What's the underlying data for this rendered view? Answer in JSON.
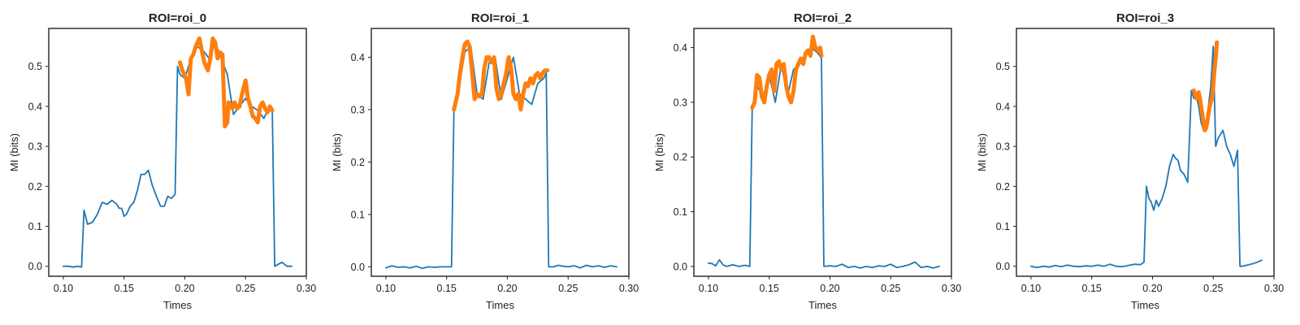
{
  "colors": {
    "baseline": "#1f77b4",
    "highlight": "#ff7f0e",
    "frame": "#222222"
  },
  "chart_data": [
    {
      "type": "line",
      "title": "ROI=roi_0",
      "xlabel": "Times",
      "ylabel": "MI (bits)",
      "xlim": [
        0.088,
        0.3
      ],
      "ylim": [
        -0.025,
        0.595
      ],
      "xticks": [
        "0.10",
        "0.15",
        "0.20",
        "0.25",
        "0.30"
      ],
      "xtick_values": [
        0.1,
        0.15,
        0.2,
        0.25,
        0.3
      ],
      "yticks": [
        "0.0",
        "0.1",
        "0.2",
        "0.3",
        "0.4",
        "0.5"
      ],
      "ytick_values": [
        0.0,
        0.1,
        0.2,
        0.3,
        0.4,
        0.5
      ],
      "series": [
        {
          "role": "baseline",
          "x": [
            0.1,
            0.104,
            0.108,
            0.112,
            0.115,
            0.117,
            0.12,
            0.124,
            0.128,
            0.132,
            0.136,
            0.14,
            0.144,
            0.146,
            0.148,
            0.15,
            0.152,
            0.155,
            0.158,
            0.161,
            0.164,
            0.167,
            0.17,
            0.173,
            0.176,
            0.18,
            0.183,
            0.186,
            0.189,
            0.192,
            0.194,
            0.196,
            0.2,
            0.205,
            0.21,
            0.215,
            0.22,
            0.225,
            0.23,
            0.235,
            0.24,
            0.245,
            0.25,
            0.255,
            0.26,
            0.265,
            0.27,
            0.272,
            0.274,
            0.277,
            0.28,
            0.284,
            0.288
          ],
          "y": [
            0.0,
            0.0,
            -0.002,
            0.0,
            -0.002,
            0.14,
            0.105,
            0.11,
            0.13,
            0.16,
            0.155,
            0.165,
            0.155,
            0.145,
            0.145,
            0.125,
            0.13,
            0.15,
            0.16,
            0.19,
            0.23,
            0.23,
            0.24,
            0.205,
            0.18,
            0.15,
            0.15,
            0.175,
            0.17,
            0.18,
            0.5,
            0.48,
            0.47,
            0.52,
            0.55,
            0.54,
            0.52,
            0.56,
            0.52,
            0.48,
            0.38,
            0.4,
            0.42,
            0.4,
            0.39,
            0.37,
            0.4,
            0.39,
            0.0,
            0.005,
            0.01,
            0.0,
            0.0
          ]
        },
        {
          "role": "highlight",
          "x": [
            0.196,
            0.198,
            0.201,
            0.203,
            0.205,
            0.207,
            0.209,
            0.212,
            0.214,
            0.216,
            0.219,
            0.221,
            0.223,
            0.225,
            0.227,
            0.229,
            0.231,
            0.233,
            0.235,
            0.236,
            0.237,
            0.238,
            0.239,
            0.241,
            0.243,
            0.245,
            0.247,
            0.25,
            0.252,
            0.254,
            0.256,
            0.258,
            0.26,
            0.262,
            0.264,
            0.266,
            0.268,
            0.27,
            0.272
          ],
          "y": [
            0.51,
            0.49,
            0.47,
            0.43,
            0.52,
            0.53,
            0.55,
            0.57,
            0.54,
            0.51,
            0.49,
            0.52,
            0.57,
            0.56,
            0.52,
            0.535,
            0.53,
            0.35,
            0.36,
            0.41,
            0.405,
            0.4,
            0.395,
            0.41,
            0.395,
            0.4,
            0.43,
            0.465,
            0.42,
            0.4,
            0.375,
            0.37,
            0.36,
            0.4,
            0.41,
            0.395,
            0.385,
            0.4,
            0.39
          ]
        }
      ]
    },
    {
      "type": "line",
      "title": "ROI=roi_1",
      "xlabel": "Times",
      "ylabel": "MI (bits)",
      "xlim": [
        0.088,
        0.3
      ],
      "ylim": [
        -0.018,
        0.455
      ],
      "xticks": [
        "0.10",
        "0.15",
        "0.20",
        "0.25",
        "0.30"
      ],
      "xtick_values": [
        0.1,
        0.15,
        0.2,
        0.25,
        0.3
      ],
      "yticks": [
        "0.0",
        "0.1",
        "0.2",
        "0.3",
        "0.4"
      ],
      "ytick_values": [
        0.0,
        0.1,
        0.2,
        0.3,
        0.4
      ],
      "series": [
        {
          "role": "baseline",
          "x": [
            0.1,
            0.105,
            0.11,
            0.115,
            0.12,
            0.125,
            0.13,
            0.135,
            0.14,
            0.145,
            0.15,
            0.154,
            0.156,
            0.16,
            0.165,
            0.17,
            0.175,
            0.18,
            0.185,
            0.19,
            0.195,
            0.2,
            0.205,
            0.21,
            0.215,
            0.22,
            0.225,
            0.23,
            0.232,
            0.234,
            0.238,
            0.242,
            0.246,
            0.25,
            0.255,
            0.26,
            0.265,
            0.27,
            0.275,
            0.28,
            0.285,
            0.29
          ],
          "y": [
            -0.002,
            0.002,
            -0.001,
            0.0,
            -0.002,
            0.001,
            -0.003,
            0.0,
            -0.001,
            0.0,
            0.0,
            0.0,
            0.3,
            0.34,
            0.41,
            0.42,
            0.33,
            0.32,
            0.39,
            0.4,
            0.32,
            0.36,
            0.4,
            0.33,
            0.32,
            0.31,
            0.35,
            0.36,
            0.37,
            0.0,
            0.0,
            0.003,
            0.001,
            0.0,
            0.002,
            -0.002,
            0.003,
            0.0,
            0.002,
            -0.001,
            0.002,
            0.0
          ]
        },
        {
          "role": "highlight",
          "x": [
            0.156,
            0.159,
            0.161,
            0.163,
            0.165,
            0.167,
            0.169,
            0.171,
            0.173,
            0.175,
            0.177,
            0.179,
            0.181,
            0.183,
            0.185,
            0.187,
            0.189,
            0.191,
            0.193,
            0.195,
            0.197,
            0.199,
            0.201,
            0.203,
            0.205,
            0.207,
            0.209,
            0.211,
            0.213,
            0.215,
            0.217,
            0.219,
            0.221,
            0.223,
            0.225,
            0.227,
            0.229,
            0.231,
            0.233
          ],
          "y": [
            0.3,
            0.33,
            0.37,
            0.4,
            0.425,
            0.43,
            0.42,
            0.37,
            0.32,
            0.33,
            0.325,
            0.33,
            0.38,
            0.4,
            0.4,
            0.39,
            0.4,
            0.34,
            0.32,
            0.33,
            0.35,
            0.37,
            0.4,
            0.38,
            0.33,
            0.32,
            0.33,
            0.3,
            0.33,
            0.35,
            0.345,
            0.36,
            0.35,
            0.365,
            0.37,
            0.36,
            0.37,
            0.375,
            0.375
          ]
        }
      ]
    },
    {
      "type": "line",
      "title": "ROI=roi_2",
      "xlabel": "Times",
      "ylabel": "MI (bits)",
      "xlim": [
        0.088,
        0.3
      ],
      "ylim": [
        -0.018,
        0.435
      ],
      "xticks": [
        "0.10",
        "0.15",
        "0.20",
        "0.25",
        "0.30"
      ],
      "xtick_values": [
        0.1,
        0.15,
        0.2,
        0.25,
        0.3
      ],
      "yticks": [
        "0.0",
        "0.1",
        "0.2",
        "0.3",
        "0.4"
      ],
      "ytick_values": [
        0.0,
        0.1,
        0.2,
        0.3,
        0.4
      ],
      "series": [
        {
          "role": "baseline",
          "x": [
            0.1,
            0.103,
            0.106,
            0.109,
            0.112,
            0.115,
            0.12,
            0.125,
            0.13,
            0.134,
            0.136,
            0.14,
            0.145,
            0.15,
            0.155,
            0.16,
            0.165,
            0.17,
            0.175,
            0.18,
            0.185,
            0.19,
            0.193,
            0.195,
            0.2,
            0.205,
            0.21,
            0.215,
            0.22,
            0.225,
            0.23,
            0.235,
            0.24,
            0.245,
            0.25,
            0.255,
            0.26,
            0.265,
            0.27,
            0.275,
            0.28,
            0.285,
            0.29
          ],
          "y": [
            0.006,
            0.005,
            0.001,
            0.012,
            0.003,
            0.0,
            0.003,
            0.0,
            0.002,
            0.0,
            0.29,
            0.33,
            0.31,
            0.35,
            0.3,
            0.37,
            0.31,
            0.36,
            0.37,
            0.39,
            0.4,
            0.39,
            0.38,
            0.0,
            0.001,
            0.0,
            0.004,
            -0.002,
            0.0,
            -0.003,
            0.0,
            -0.002,
            0.001,
            0.0,
            0.004,
            -0.002,
            0.0,
            0.003,
            0.008,
            -0.002,
            0.0,
            -0.003,
            0.0
          ]
        },
        {
          "role": "highlight",
          "x": [
            0.136,
            0.138,
            0.14,
            0.142,
            0.144,
            0.146,
            0.148,
            0.15,
            0.152,
            0.154,
            0.156,
            0.158,
            0.16,
            0.162,
            0.164,
            0.166,
            0.168,
            0.17,
            0.172,
            0.174,
            0.176,
            0.178,
            0.18,
            0.182,
            0.184,
            0.186,
            0.188,
            0.19,
            0.192,
            0.193
          ],
          "y": [
            0.29,
            0.3,
            0.35,
            0.345,
            0.31,
            0.3,
            0.33,
            0.35,
            0.36,
            0.32,
            0.37,
            0.375,
            0.36,
            0.37,
            0.33,
            0.31,
            0.3,
            0.32,
            0.36,
            0.37,
            0.38,
            0.37,
            0.39,
            0.395,
            0.385,
            0.42,
            0.4,
            0.395,
            0.4,
            0.385
          ]
        }
      ]
    },
    {
      "type": "line",
      "title": "ROI=roi_3",
      "xlabel": "Times",
      "ylabel": "MI (bits)",
      "xlim": [
        0.088,
        0.3
      ],
      "ylim": [
        -0.025,
        0.595
      ],
      "xticks": [
        "0.10",
        "0.15",
        "0.20",
        "0.25",
        "0.30"
      ],
      "xtick_values": [
        0.1,
        0.15,
        0.2,
        0.25,
        0.3
      ],
      "yticks": [
        "0.0",
        "0.1",
        "0.2",
        "0.3",
        "0.4",
        "0.5"
      ],
      "ytick_values": [
        0.0,
        0.1,
        0.2,
        0.3,
        0.4,
        0.5
      ],
      "series": [
        {
          "role": "baseline",
          "x": [
            0.1,
            0.105,
            0.11,
            0.115,
            0.12,
            0.125,
            0.13,
            0.135,
            0.14,
            0.145,
            0.15,
            0.155,
            0.16,
            0.165,
            0.17,
            0.175,
            0.18,
            0.185,
            0.19,
            0.193,
            0.195,
            0.197,
            0.199,
            0.201,
            0.203,
            0.205,
            0.208,
            0.211,
            0.214,
            0.217,
            0.219,
            0.221,
            0.223,
            0.226,
            0.229,
            0.232,
            0.234,
            0.236,
            0.238,
            0.24,
            0.242,
            0.244,
            0.246,
            0.248,
            0.25,
            0.252,
            0.254,
            0.256,
            0.258,
            0.261,
            0.264,
            0.267,
            0.27,
            0.272,
            0.274,
            0.278,
            0.282,
            0.286,
            0.29
          ],
          "y": [
            0.0,
            -0.003,
            0.0,
            -0.002,
            0.002,
            -0.001,
            0.003,
            0.0,
            -0.001,
            0.001,
            0.0,
            0.003,
            0.0,
            0.005,
            0.0,
            -0.001,
            0.002,
            0.005,
            0.004,
            0.01,
            0.2,
            0.17,
            0.16,
            0.14,
            0.165,
            0.15,
            0.17,
            0.2,
            0.25,
            0.28,
            0.27,
            0.265,
            0.24,
            0.23,
            0.21,
            0.44,
            0.42,
            0.43,
            0.4,
            0.36,
            0.34,
            0.36,
            0.4,
            0.45,
            0.55,
            0.3,
            0.32,
            0.33,
            0.34,
            0.3,
            0.28,
            0.25,
            0.29,
            0.0,
            0.0,
            0.003,
            0.006,
            0.01,
            0.015
          ]
        },
        {
          "role": "highlight",
          "x": [
            0.234,
            0.236,
            0.237,
            0.238,
            0.239,
            0.24,
            0.241,
            0.242,
            0.243,
            0.244,
            0.245,
            0.246,
            0.247,
            0.248,
            0.249,
            0.25,
            0.251,
            0.252,
            0.253
          ],
          "y": [
            0.44,
            0.42,
            0.43,
            0.435,
            0.42,
            0.4,
            0.38,
            0.36,
            0.34,
            0.345,
            0.36,
            0.38,
            0.4,
            0.41,
            0.42,
            0.45,
            0.49,
            0.52,
            0.56
          ]
        }
      ]
    }
  ]
}
